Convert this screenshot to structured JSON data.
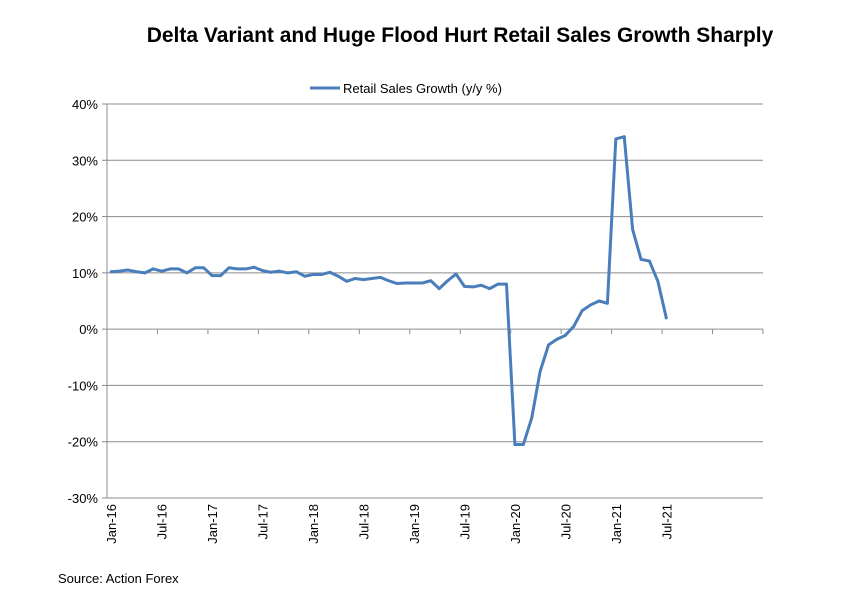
{
  "chart_data": {
    "type": "line",
    "title": "Delta Variant and Huge Flood Hurt Retail Sales Growth Sharply",
    "source": "Source: Action Forex",
    "legend": "top-center",
    "ylim": [
      -30,
      40
    ],
    "yticks": [
      -30,
      -20,
      -10,
      0,
      10,
      20,
      30,
      40
    ],
    "ytick_labels": [
      "-30%",
      "-20%",
      "-10%",
      "0%",
      "10%",
      "20%",
      "30%",
      "40%"
    ],
    "xtick_labels": [
      "Jan-16",
      "Jul-16",
      "Jan-17",
      "Jul-17",
      "Jan-18",
      "Jul-18",
      "Jan-19",
      "Jul-19",
      "Jan-20",
      "Jul-20",
      "Jan-21",
      "Jul-21"
    ],
    "x_start": "Jan-16",
    "series": [
      {
        "name": "Retail Sales Growth (y/y %)",
        "color": "#4a7ebb",
        "values": [
          10.2,
          10.3,
          10.5,
          10.2,
          10.0,
          10.7,
          10.3,
          10.7,
          10.7,
          10.0,
          10.9,
          10.9,
          9.5,
          9.5,
          10.9,
          10.7,
          10.7,
          11.0,
          10.4,
          10.1,
          10.3,
          10.0,
          10.2,
          9.4,
          9.7,
          9.7,
          10.1,
          9.4,
          8.5,
          9.0,
          8.8,
          9.0,
          9.2,
          8.6,
          8.1,
          8.2,
          8.2,
          8.2,
          8.6,
          7.2,
          8.6,
          9.8,
          7.6,
          7.5,
          7.8,
          7.2,
          8.0,
          8.0,
          -20.5,
          -20.5,
          -15.8,
          -7.5,
          -2.8,
          -1.8,
          -1.1,
          0.5,
          3.3,
          4.3,
          5.0,
          4.6,
          33.8,
          34.2,
          17.7,
          12.4,
          12.1,
          8.5,
          2.0
        ]
      }
    ]
  }
}
